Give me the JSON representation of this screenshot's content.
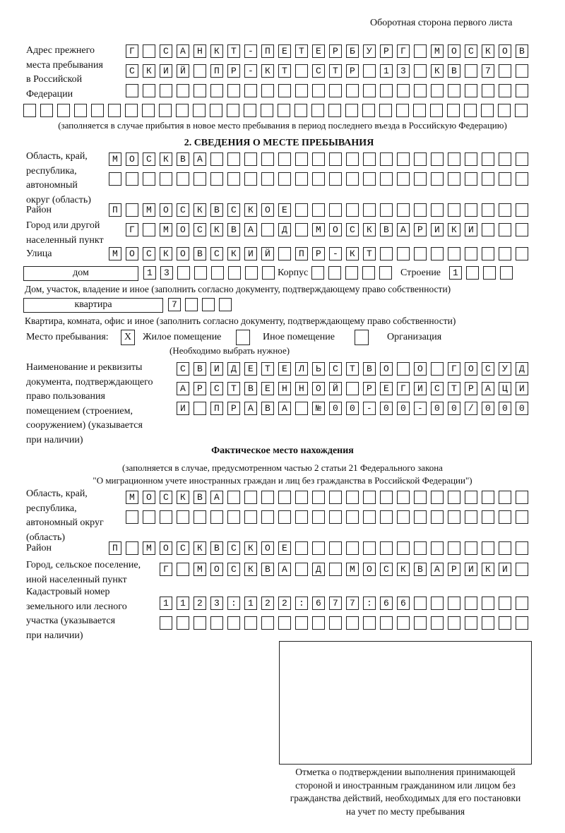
{
  "header": {
    "page_side": "Оборотная сторона первого листа"
  },
  "previous_address": {
    "label": "Адрес прежнего\nместа пребывания\nв Российской\nФедерации",
    "rows": [
      "Г САНКТ-ПЕТЕРБУРГ МОСКОВ",
      "СКИЙ ПР-КТ СТР 13 КВ 7",
      "",
      ""
    ],
    "note": "(заполняется в случае прибытия в новое место пребывания в период последнего въезда в Российскую Федерацию)"
  },
  "section2": {
    "title": "2. СВЕДЕНИЯ О МЕСТЕ ПРЕБЫВАНИЯ",
    "region_label": "Область, край,\nреспублика,\nавтономный\nокруг (область)",
    "region_rows": [
      "МОСКВА",
      ""
    ],
    "district_label": "Район",
    "district": "П МОСКВСКОЕ",
    "city_label": "Город или другой\nнаселенный пункт",
    "city": "Г МОСКВА Д МОСКВАРИКИ",
    "street_label": "Улица",
    "street": "МОСКОВСКИЙ ПР-КТ",
    "house_type": "дом",
    "house_number": "13",
    "korpus_label": "Корпус",
    "korpus": "",
    "building_label": "Строение",
    "building": "1",
    "house_note": "Дом, участок, владение и иное (заполнить согласно документу, подтверждающему право собственности)",
    "apt_type": "квартира",
    "apt_number": "7",
    "apt_note": "Квартира, комната, офис и иное (заполнить согласно документу, подтверждающему право собственности)",
    "stay_place_label": "Место пребывания:",
    "stay_options": [
      {
        "label": "Жилое помещение",
        "mark": "X"
      },
      {
        "label": "Иное помещение",
        "mark": ""
      },
      {
        "label": "Организация",
        "mark": ""
      }
    ],
    "stay_note": "(Необходимо выбрать нужное)",
    "doc_label": "Наименование и реквизиты\nдокумента, подтверждающего\nправо пользования\nпомещением (строением,\nсооружением) (указывается\nпри наличии)",
    "doc_rows": [
      "СВИДЕТЕЛЬСТВО О ГОСУД",
      "АРСТВЕННОЙ РЕГИСТРАЦИ",
      "И ПРАВА №00-00-00/000"
    ]
  },
  "actual": {
    "title": "Фактическое место нахождения",
    "note1": "(заполняется в случае, предусмотренном частью 2 статьи 21 Федерального закона",
    "note2": "\"О миграционном учете иностранных граждан и лиц без гражданства в Российской Федерации\")",
    "region_label": "Область, край,\nреспублика,\nавтономный округ\n(область)",
    "region_rows": [
      "МОСКВА",
      ""
    ],
    "district_label": "Район",
    "district": "П МОСКВСКОЕ",
    "city_label": "Город, сельское поселение,\nиной населенный пункт",
    "city": "Г МОСКВА Д МОСКВАРИКИ",
    "cadastre_label": "Кадастровый номер\nземельного или лесного\nучастка (указывается\nпри наличии)",
    "cadastre_rows": [
      "1123:122:677:66",
      ""
    ]
  },
  "stamp": {
    "caption": "Отметка о подтверждении выполнения принимающей\nстороной и иностранным гражданином или лицом без\nгражданства действий, необходимых для его постановки\nна учет по месту пребывания"
  }
}
